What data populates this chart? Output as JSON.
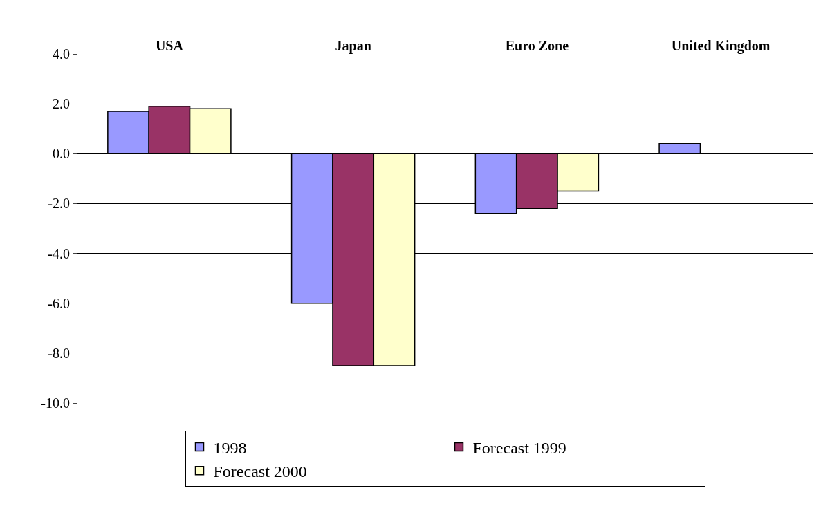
{
  "chart_data": {
    "type": "bar",
    "categories": [
      "USA",
      "Japan",
      "Euro Zone",
      "United Kingdom"
    ],
    "series": [
      {
        "name": "1998",
        "color": "#9999ff",
        "values": [
          1.7,
          -6.0,
          -2.4,
          0.4
        ]
      },
      {
        "name": "Forecast 1999",
        "color": "#993366",
        "values": [
          1.9,
          -8.5,
          -2.2,
          null
        ]
      },
      {
        "name": "Forecast 2000",
        "color": "#ffffcc",
        "values": [
          1.8,
          -8.5,
          -1.5,
          null
        ]
      }
    ],
    "ylim": [
      -10,
      4
    ],
    "yticks": [
      {
        "value": -10,
        "label": "-10.0"
      },
      {
        "value": -8,
        "label": "-8.0"
      },
      {
        "value": -6,
        "label": "-6.0"
      },
      {
        "value": -4,
        "label": "-4.0"
      },
      {
        "value": -2,
        "label": "-2.0"
      },
      {
        "value": 0,
        "label": "0.0"
      },
      {
        "value": 2,
        "label": "2.0"
      },
      {
        "value": 4,
        "label": "4.0"
      }
    ],
    "grid": "y",
    "legend": "bottom"
  }
}
